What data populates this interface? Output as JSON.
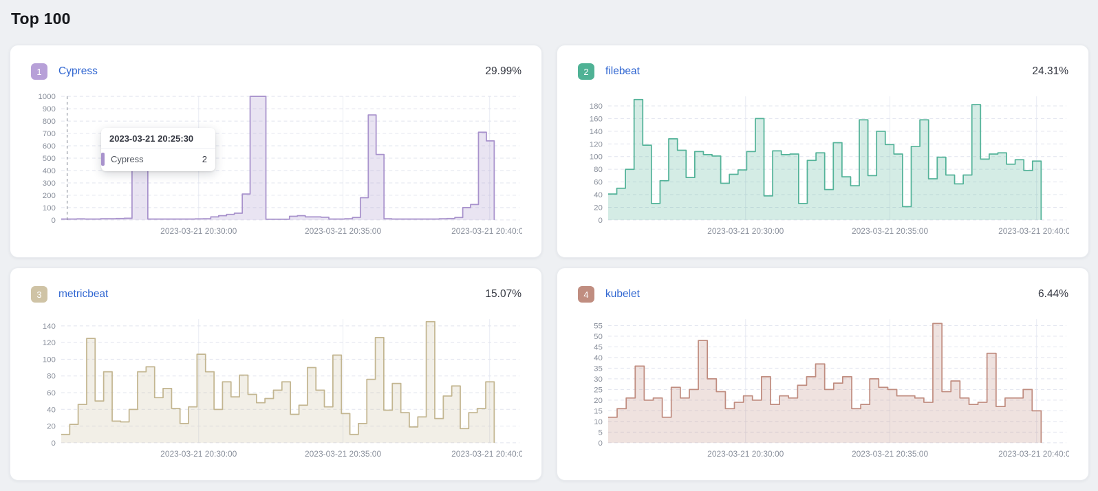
{
  "page": {
    "title": "Top 100",
    "background": "#eef0f3"
  },
  "tooltip": {
    "title": "2023-03-21 20:25:30",
    "series": "Cypress",
    "value": "2",
    "marker_color": "#a892cc"
  },
  "chart_data": [
    {
      "type": "area",
      "rank": "1",
      "name": "Cypress",
      "percent": "29.99%",
      "badge_color": "#b7a0d8",
      "stroke_color": "#a892cc",
      "fill_color": "rgba(168,146,204,0.25)",
      "y_ticks": [
        0,
        100,
        200,
        300,
        400,
        500,
        600,
        700,
        800,
        900,
        1000
      ],
      "y_max": 1000,
      "x_labels": [
        "2023-03-21 20:30:00",
        "2023-03-21 20:35:00",
        "2023-03-21 20:40:00"
      ],
      "crosshair_frac": 0.013,
      "values": [
        8,
        8,
        9,
        8,
        8,
        10,
        10,
        12,
        14,
        560,
        560,
        8,
        8,
        8,
        8,
        8,
        8,
        9,
        10,
        25,
        35,
        45,
        55,
        210,
        1000,
        1000,
        6,
        6,
        6,
        30,
        35,
        25,
        25,
        22,
        8,
        8,
        10,
        20,
        180,
        850,
        530,
        10,
        8,
        8,
        8,
        8,
        8,
        8,
        10,
        12,
        20,
        100,
        125,
        710,
        640
      ]
    },
    {
      "type": "area",
      "rank": "2",
      "name": "filebeat",
      "percent": "24.31%",
      "badge_color": "#4fb295",
      "stroke_color": "#54b399",
      "fill_color": "rgba(84,179,153,0.25)",
      "y_ticks": [
        0,
        20,
        40,
        60,
        80,
        100,
        120,
        140,
        160,
        180
      ],
      "y_max": 195,
      "x_labels": [
        "2023-03-21 20:30:00",
        "2023-03-21 20:35:00",
        "2023-03-21 20:40:00"
      ],
      "values": [
        41,
        50,
        80,
        190,
        118,
        26,
        62,
        128,
        110,
        67,
        108,
        103,
        101,
        58,
        72,
        79,
        108,
        160,
        38,
        109,
        103,
        104,
        26,
        94,
        106,
        48,
        122,
        68,
        54,
        158,
        70,
        140,
        119,
        104,
        21,
        116,
        158,
        65,
        99,
        71,
        57,
        71,
        182,
        96,
        104,
        106,
        88,
        95,
        78,
        93
      ]
    },
    {
      "type": "area",
      "rank": "3",
      "name": "metricbeat",
      "percent": "15.07%",
      "badge_color": "#cfc3a5",
      "stroke_color": "#c3b691",
      "fill_color": "rgba(195,182,145,0.22)",
      "y_ticks": [
        0,
        20,
        40,
        60,
        80,
        100,
        120,
        140
      ],
      "y_max": 148,
      "x_labels": [
        "2023-03-21 20:30:00",
        "2023-03-21 20:35:00",
        "2023-03-21 20:40:00"
      ],
      "values": [
        10,
        22,
        46,
        125,
        50,
        85,
        26,
        25,
        40,
        85,
        91,
        54,
        65,
        41,
        23,
        43,
        106,
        85,
        40,
        73,
        55,
        81,
        58,
        48,
        53,
        63,
        73,
        34,
        45,
        90,
        63,
        43,
        105,
        35,
        10,
        23,
        76,
        126,
        39,
        71,
        36,
        19,
        31,
        145,
        29,
        56,
        68,
        17,
        36,
        41,
        73
      ]
    },
    {
      "type": "area",
      "rank": "4",
      "name": "kubelet",
      "percent": "6.44%",
      "badge_color": "#c08d80",
      "stroke_color": "#c08d80",
      "fill_color": "rgba(192,141,128,0.25)",
      "y_ticks": [
        0,
        5,
        10,
        15,
        20,
        25,
        30,
        35,
        40,
        45,
        50,
        55
      ],
      "y_max": 58,
      "x_labels": [
        "2023-03-21 20:30:00",
        "2023-03-21 20:35:00",
        "2023-03-21 20:40:00"
      ],
      "values": [
        12,
        16,
        21,
        36,
        20,
        21,
        12,
        26,
        21,
        25,
        48,
        30,
        24,
        16,
        19,
        22,
        20,
        31,
        18,
        22,
        21,
        27,
        31,
        37,
        25,
        28,
        31,
        16,
        18,
        30,
        26,
        25,
        22,
        22,
        21,
        19,
        56,
        24,
        29,
        21,
        18,
        19,
        42,
        17,
        21,
        21,
        25,
        15
      ]
    }
  ]
}
